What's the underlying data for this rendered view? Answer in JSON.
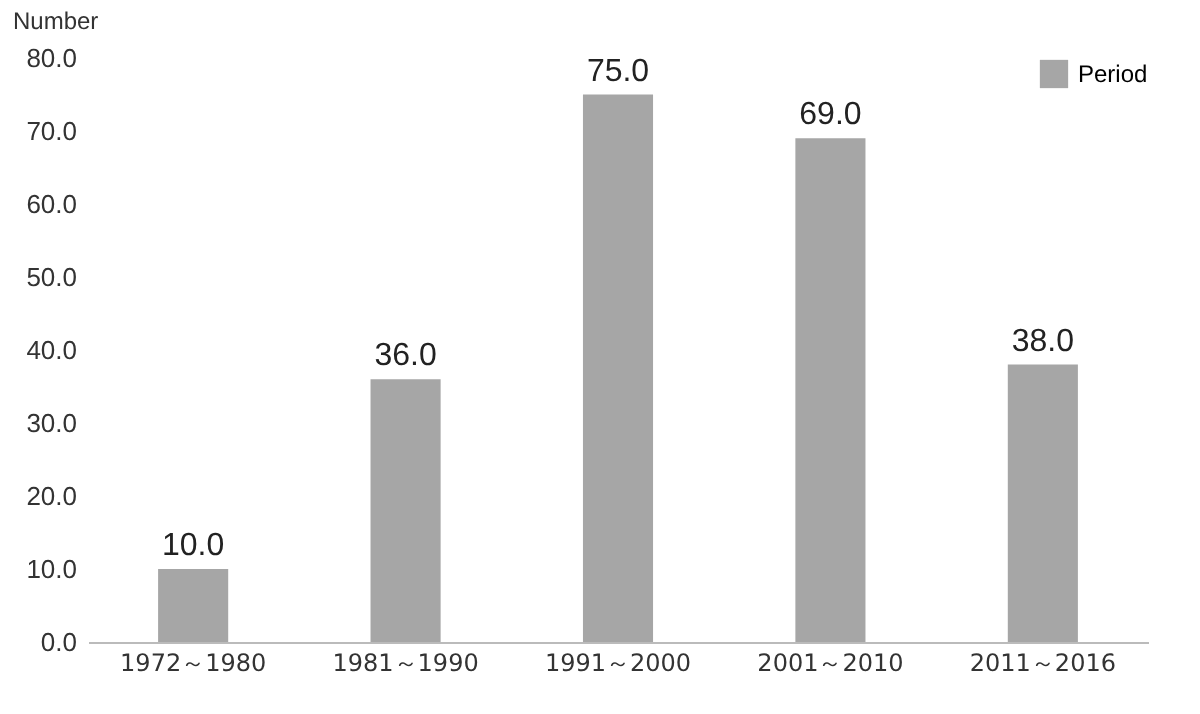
{
  "chart_data": {
    "type": "bar",
    "ylabel": "Number",
    "categories": [
      "1972～1980",
      "1981～1990",
      "1991～2000",
      "2001～2010",
      "2011～2016"
    ],
    "series": [
      {
        "name": "Period",
        "color": "#a6a6a6",
        "values": [
          10,
          36,
          75,
          69,
          38
        ],
        "value_labels": [
          "10.0",
          "36.0",
          "75.0",
          "69.0",
          "38.0"
        ]
      }
    ],
    "ylim": [
      0,
      80
    ],
    "yticks": [
      {
        "value": 0,
        "label": "0.0"
      },
      {
        "value": 10,
        "label": "10.0"
      },
      {
        "value": 20,
        "label": "20.0"
      },
      {
        "value": 30,
        "label": "30.0"
      },
      {
        "value": 40,
        "label": "40.0"
      },
      {
        "value": 50,
        "label": "50.0"
      },
      {
        "value": 60,
        "label": "60.0"
      },
      {
        "value": 70,
        "label": "70.0"
      },
      {
        "value": 80,
        "label": "80.0"
      }
    ],
    "grid": false,
    "legend": "top right"
  }
}
